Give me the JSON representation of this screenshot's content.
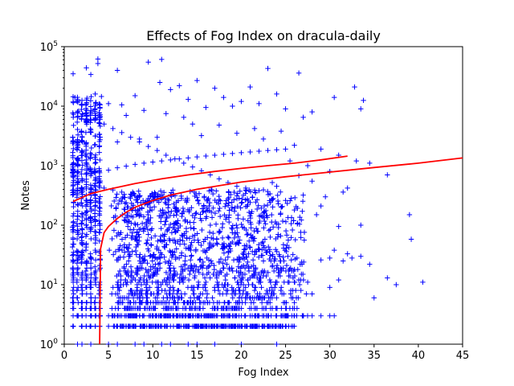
{
  "chart_data": {
    "type": "scatter",
    "title": "Effects of Fog Index on dracula-daily",
    "xlabel": "Fog Index",
    "ylabel": "Notes",
    "xlim": [
      0,
      45
    ],
    "ylim": [
      1,
      100000
    ],
    "yscale": "log",
    "grid": false,
    "legend": "none",
    "x_ticks": [
      0,
      5,
      10,
      15,
      20,
      25,
      30,
      35,
      40,
      45
    ],
    "y_ticks": [
      {
        "value": 1,
        "base": "10",
        "exp": "0"
      },
      {
        "value": 10,
        "base": "10",
        "exp": "1"
      },
      {
        "value": 100,
        "base": "10",
        "exp": "2"
      },
      {
        "value": 1000,
        "base": "10",
        "exp": "3"
      },
      {
        "value": 10000,
        "base": "10",
        "exp": "4"
      },
      {
        "value": 100000,
        "base": "10",
        "exp": "5"
      }
    ],
    "marker_color": "#0000ff",
    "fit_color": "#ff0000",
    "points": [
      [
        3.8,
        62000
      ],
      [
        3.8,
        52000
      ],
      [
        11,
        61000
      ],
      [
        9.5,
        55000
      ],
      [
        2.5,
        44000
      ],
      [
        1,
        35000
      ],
      [
        3,
        34000
      ],
      [
        6,
        40000
      ],
      [
        23,
        43000
      ],
      [
        26.5,
        36000
      ],
      [
        10.8,
        25000
      ],
      [
        13,
        22000
      ],
      [
        15,
        27000
      ],
      [
        32.8,
        21000
      ],
      [
        21,
        21000
      ],
      [
        17,
        20000
      ],
      [
        24,
        16000
      ],
      [
        30.5,
        14000
      ],
      [
        33.8,
        12500
      ],
      [
        33.5,
        9000
      ],
      [
        12,
        19000
      ],
      [
        14,
        13000
      ],
      [
        20,
        12000
      ],
      [
        8,
        15000
      ],
      [
        6.5,
        10500
      ],
      [
        5,
        11000
      ],
      [
        2,
        12500
      ],
      [
        1.2,
        14000
      ],
      [
        3.5,
        16000
      ],
      [
        4.2,
        14500
      ],
      [
        18,
        14000
      ],
      [
        19,
        10000
      ],
      [
        22,
        11000
      ],
      [
        25,
        9000
      ],
      [
        27,
        6500
      ],
      [
        28,
        8000
      ],
      [
        16,
        9500
      ],
      [
        9,
        8500
      ],
      [
        7,
        7000
      ],
      [
        11.5,
        7500
      ],
      [
        13.5,
        6500
      ],
      [
        14.5,
        5000
      ],
      [
        17.5,
        4800
      ],
      [
        21.5,
        4200
      ],
      [
        24.5,
        3800
      ],
      [
        19.5,
        3500
      ],
      [
        15.5,
        3200
      ],
      [
        10.5,
        3000
      ],
      [
        8.5,
        2800
      ],
      [
        6,
        2500
      ],
      [
        22.5,
        2800
      ],
      [
        26,
        2200
      ],
      [
        29,
        1900
      ],
      [
        31,
        1500
      ],
      [
        33,
        1200
      ],
      [
        34.5,
        1100
      ],
      [
        36.5,
        700
      ],
      [
        30,
        800
      ],
      [
        27.5,
        1000
      ],
      [
        25.5,
        1200
      ],
      [
        32,
        420
      ],
      [
        31.5,
        360
      ],
      [
        29.5,
        300
      ],
      [
        28,
        550
      ],
      [
        26.5,
        680
      ],
      [
        24,
        450
      ],
      [
        22,
        380
      ],
      [
        20.5,
        420
      ],
      [
        23.5,
        520
      ],
      [
        27,
        320
      ],
      [
        33.5,
        100
      ],
      [
        31,
        95
      ],
      [
        29,
        210
      ],
      [
        28.5,
        150
      ],
      [
        26,
        180
      ],
      [
        25,
        260
      ],
      [
        24.5,
        200
      ],
      [
        22.5,
        160
      ],
      [
        21,
        240
      ],
      [
        19.5,
        310
      ],
      [
        39,
        150
      ],
      [
        39.2,
        58
      ],
      [
        34.5,
        22
      ],
      [
        33.5,
        30
      ],
      [
        32.5,
        28
      ],
      [
        31.5,
        25
      ],
      [
        32,
        33
      ],
      [
        30.5,
        38
      ],
      [
        30,
        28
      ],
      [
        29,
        26
      ],
      [
        36.5,
        13
      ],
      [
        37.5,
        10
      ],
      [
        40.5,
        11
      ],
      [
        35,
        6
      ],
      [
        31,
        12
      ],
      [
        30,
        9
      ],
      [
        30.5,
        3
      ],
      [
        28,
        7
      ],
      [
        27.5,
        11
      ],
      [
        26.5,
        12
      ],
      [
        25.5,
        14
      ],
      [
        24.5,
        17
      ],
      [
        23.5,
        20
      ],
      [
        22.5,
        25
      ],
      [
        21.5,
        32
      ],
      [
        20.5,
        40
      ],
      [
        19.5,
        50
      ],
      [
        18.5,
        63
      ],
      [
        17.5,
        79
      ],
      [
        16.5,
        100
      ],
      [
        15.5,
        120
      ],
      [
        14.5,
        145
      ],
      [
        13.5,
        170
      ],
      [
        12.5,
        200
      ],
      [
        11.5,
        230
      ],
      [
        10.5,
        260
      ],
      [
        9.5,
        280
      ],
      [
        8.5,
        310
      ],
      [
        7.5,
        330
      ],
      [
        6.5,
        360
      ],
      [
        5.5,
        390
      ],
      [
        4.5,
        420
      ],
      [
        3.5,
        450
      ],
      [
        2.5,
        480
      ],
      [
        1.5,
        510
      ],
      [
        1,
        520
      ],
      [
        2,
        600
      ],
      [
        3,
        680
      ],
      [
        4,
        760
      ],
      [
        5,
        840
      ],
      [
        6,
        920
      ],
      [
        7,
        980
      ],
      [
        8,
        1050
      ],
      [
        9,
        1100
      ],
      [
        10,
        1150
      ],
      [
        11,
        1200
      ],
      [
        12,
        1250
      ],
      [
        13,
        1300
      ],
      [
        14,
        1350
      ],
      [
        15,
        1400
      ],
      [
        16,
        1450
      ],
      [
        17,
        1500
      ],
      [
        18,
        1550
      ],
      [
        19,
        1600
      ],
      [
        20,
        1650
      ],
      [
        21,
        1700
      ],
      [
        22,
        1750
      ],
      [
        23,
        1800
      ],
      [
        24,
        1850
      ],
      [
        25,
        1900
      ],
      [
        1.5,
        8000
      ],
      [
        2.5,
        7000
      ],
      [
        3.5,
        6000
      ],
      [
        4.5,
        5000
      ],
      [
        5.5,
        4200
      ],
      [
        6.5,
        3600
      ],
      [
        7.5,
        3000
      ],
      [
        8.5,
        2500
      ],
      [
        9.5,
        2100
      ],
      [
        10.5,
        1800
      ],
      [
        11.5,
        1500
      ],
      [
        12.5,
        1300
      ],
      [
        13.5,
        1100
      ],
      [
        14.5,
        950
      ],
      [
        15.5,
        820
      ],
      [
        16.5,
        700
      ],
      [
        17.5,
        600
      ],
      [
        18.5,
        520
      ],
      [
        19.5,
        450
      ],
      [
        20.5,
        390
      ],
      [
        1,
        2
      ],
      [
        2,
        2
      ],
      [
        3,
        2
      ],
      [
        4,
        2
      ],
      [
        5,
        2
      ],
      [
        6,
        2
      ],
      [
        7,
        2
      ],
      [
        8,
        2
      ],
      [
        9,
        2
      ],
      [
        10,
        2
      ],
      [
        11,
        2
      ],
      [
        12,
        2
      ],
      [
        13,
        2
      ],
      [
        14,
        2
      ],
      [
        15,
        2
      ],
      [
        16,
        2
      ],
      [
        17,
        2
      ],
      [
        18,
        2
      ],
      [
        19,
        2
      ],
      [
        20,
        2
      ],
      [
        21,
        2
      ],
      [
        22,
        2
      ],
      [
        23,
        2
      ],
      [
        25,
        2
      ],
      [
        26,
        2
      ],
      [
        22.5,
        2
      ],
      [
        24,
        1
      ],
      [
        20,
        1
      ],
      [
        17,
        1
      ],
      [
        14,
        1
      ],
      [
        11,
        1
      ],
      [
        8,
        1
      ],
      [
        5,
        1
      ],
      [
        2,
        1
      ],
      [
        1.5,
        1
      ],
      [
        3,
        1
      ],
      [
        6,
        1
      ],
      [
        9,
        1
      ],
      [
        12,
        1
      ],
      [
        15,
        1
      ],
      [
        1,
        3
      ],
      [
        2,
        3
      ],
      [
        3,
        3
      ],
      [
        4,
        3
      ],
      [
        5,
        3
      ],
      [
        6,
        3
      ],
      [
        7,
        3
      ],
      [
        8,
        3
      ],
      [
        9,
        3
      ],
      [
        10,
        3
      ],
      [
        11,
        3
      ],
      [
        12,
        3
      ],
      [
        13,
        3
      ],
      [
        14,
        3
      ],
      [
        15,
        3
      ],
      [
        16,
        3
      ],
      [
        17,
        3
      ],
      [
        18,
        3
      ],
      [
        19,
        3
      ],
      [
        20,
        3
      ],
      [
        21,
        3
      ],
      [
        22,
        3
      ],
      [
        23,
        3
      ],
      [
        24,
        3
      ],
      [
        25,
        3
      ],
      [
        26,
        3
      ],
      [
        27,
        3
      ],
      [
        28,
        3
      ],
      [
        29,
        3
      ],
      [
        30,
        3
      ]
    ],
    "column_x": [
      1,
      1.5,
      2,
      2.5,
      3,
      3.5,
      4
    ],
    "column_range": [
      2,
      15000
    ],
    "cluster": {
      "x_range": [
        5,
        28
      ],
      "y_range": [
        2,
        400
      ],
      "count": 1800
    },
    "fits": [
      {
        "x": [
          1,
          3,
          5,
          8,
          11,
          14,
          17,
          20,
          23,
          26,
          29,
          32
        ],
        "y": [
          250,
          340,
          400,
          500,
          600,
          700,
          800,
          900,
          1000,
          1100,
          1250,
          1450
        ]
      },
      {
        "x": [
          4,
          4.1,
          4.5,
          5,
          6,
          7,
          8,
          10,
          12,
          15,
          20,
          25,
          30,
          35,
          40,
          45
        ],
        "y": [
          1,
          40,
          75,
          95,
          130,
          165,
          200,
          260,
          320,
          400,
          530,
          650,
          780,
          930,
          1100,
          1350
        ]
      }
    ]
  }
}
